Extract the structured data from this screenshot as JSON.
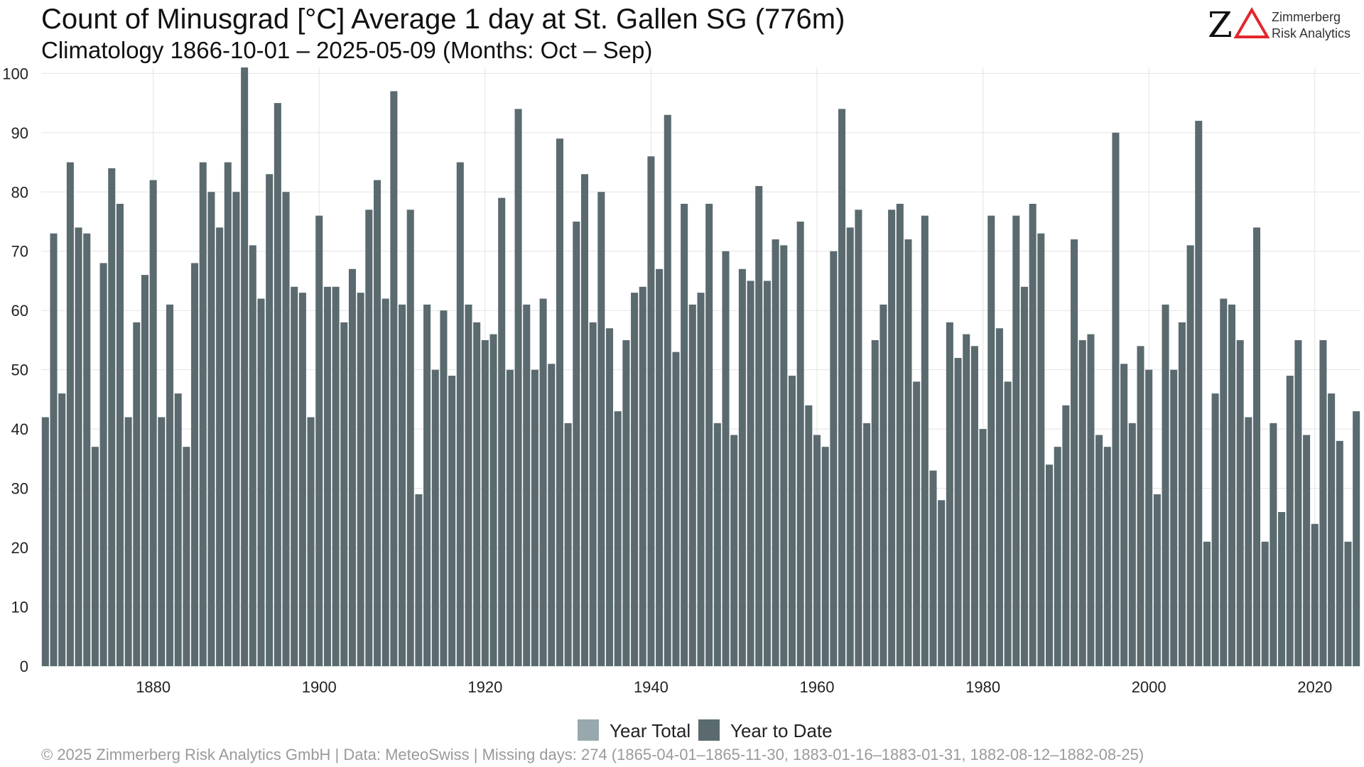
{
  "title": "Count of Minusgrad [°C] Average 1 day at St. Gallen  SG (776m)",
  "subtitle": "Climatology 1866-10-01 – 2025-05-09 (Months: Oct – Sep)",
  "logo": {
    "line1": "Zimmerberg",
    "line2": "Risk Analytics"
  },
  "legend": {
    "year_total": "Year Total",
    "year_to_date": "Year to Date"
  },
  "footer": "©  2025 Zimmerberg Risk Analytics GmbH | Data: MeteoSwiss | Missing days: 274 (1865-04-01–1865-11-30, 1883-01-16–1883-01-31, 1882-08-12–1882-08-25)",
  "colors": {
    "year_total": "#98a9ad",
    "year_to_date": "#5a6a6f",
    "grid": "#e3e3e3"
  },
  "chart_data": {
    "type": "bar",
    "x_start": 1867,
    "x_end": 2025,
    "xticks": [
      1880,
      1900,
      1920,
      1940,
      1960,
      1980,
      2000,
      2020
    ],
    "ylim": [
      0,
      101
    ],
    "yticks": [
      0,
      10,
      20,
      30,
      40,
      50,
      60,
      70,
      80,
      90,
      100
    ],
    "grid": true,
    "legend_position": "bottom",
    "series": [
      {
        "name": "Year to Date",
        "values": [
          42,
          73,
          46,
          85,
          74,
          73,
          37,
          68,
          84,
          78,
          42,
          58,
          66,
          82,
          42,
          61,
          46,
          37,
          68,
          85,
          80,
          74,
          85,
          80,
          101,
          71,
          62,
          83,
          95,
          80,
          64,
          63,
          42,
          76,
          64,
          64,
          58,
          67,
          63,
          77,
          82,
          62,
          97,
          61,
          77,
          29,
          61,
          50,
          60,
          49,
          85,
          61,
          58,
          55,
          56,
          79,
          50,
          94,
          61,
          50,
          62,
          51,
          89,
          41,
          75,
          83,
          58,
          80,
          57,
          43,
          55,
          63,
          64,
          86,
          67,
          93,
          53,
          78,
          61,
          63,
          78,
          41,
          70,
          39,
          67,
          65,
          81,
          65,
          72,
          71,
          49,
          75,
          44,
          39,
          37,
          70,
          94,
          74,
          77,
          41,
          55,
          61,
          77,
          78,
          72,
          48,
          76,
          33,
          28,
          58,
          52,
          56,
          54,
          40,
          76,
          57,
          48,
          76,
          64,
          78,
          73,
          34,
          37,
          44,
          72,
          55,
          56,
          39,
          37,
          90,
          51,
          41,
          54,
          50,
          29,
          61,
          50,
          58,
          71,
          92,
          21,
          46,
          62,
          61,
          55,
          42,
          74,
          21,
          41,
          26,
          49,
          55,
          39,
          24,
          55,
          46,
          38,
          21,
          43
        ]
      }
    ]
  }
}
